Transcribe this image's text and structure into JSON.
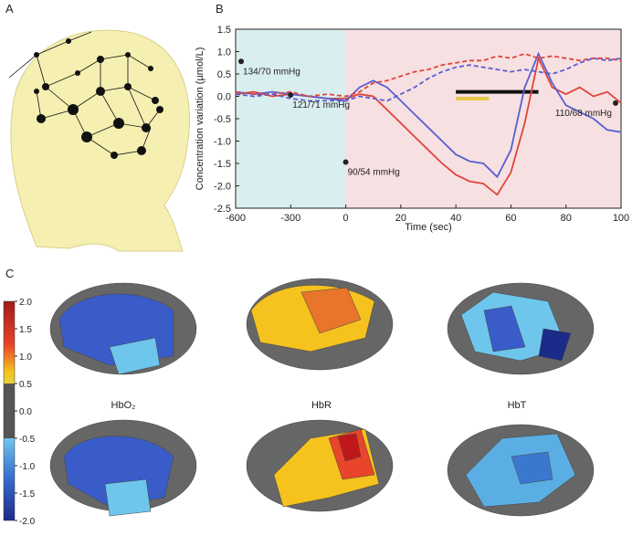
{
  "panel_labels": [
    "A",
    "B",
    "C"
  ],
  "chart_data": {
    "type": "line",
    "ylabel": "Concentration variation (µmol/L)",
    "xlabel": "Time (sec)",
    "x": [
      -600,
      -500,
      -400,
      -300,
      -200,
      -100,
      0,
      5,
      10,
      15,
      20,
      25,
      30,
      35,
      40,
      45,
      50,
      55,
      60,
      65,
      70,
      75,
      80,
      85,
      90,
      95,
      100
    ],
    "series": [
      {
        "color": "#e0453a",
        "dashed": false,
        "values": [
          0.05,
          0.1,
          0.0,
          0.05,
          0.0,
          -0.05,
          -0.05,
          0.05,
          0.0,
          -0.3,
          -0.6,
          -0.9,
          -1.2,
          -1.5,
          -1.75,
          -1.9,
          -1.95,
          -2.2,
          -1.7,
          -0.6,
          0.85,
          0.2,
          0.05,
          0.2,
          0.0,
          0.1,
          -0.15
        ]
      },
      {
        "color": "#5a5ed0",
        "dashed": false,
        "values": [
          0.1,
          0.05,
          0.1,
          0.05,
          0.0,
          -0.05,
          -0.1,
          0.2,
          0.35,
          0.2,
          -0.1,
          -0.4,
          -0.7,
          -1.0,
          -1.3,
          -1.45,
          -1.5,
          -1.8,
          -1.2,
          0.2,
          0.95,
          0.3,
          -0.2,
          -0.35,
          -0.5,
          -0.75,
          -0.8
        ]
      },
      {
        "color": "#e0453a",
        "dashed": true,
        "values": [
          0.1,
          0.05,
          0.05,
          0.1,
          0.0,
          0.05,
          0.0,
          0.1,
          0.3,
          0.35,
          0.45,
          0.55,
          0.6,
          0.7,
          0.75,
          0.8,
          0.8,
          0.9,
          0.85,
          0.95,
          0.85,
          0.9,
          0.85,
          0.8,
          0.85,
          0.85,
          0.8
        ]
      },
      {
        "color": "#5a5ed0",
        "dashed": true,
        "values": [
          0.05,
          0.0,
          0.05,
          -0.05,
          -0.1,
          -0.1,
          -0.1,
          0.0,
          -0.05,
          -0.1,
          0.05,
          0.2,
          0.4,
          0.55,
          0.65,
          0.7,
          0.65,
          0.6,
          0.55,
          0.6,
          0.55,
          0.5,
          0.6,
          0.75,
          0.85,
          0.8,
          0.85
        ]
      }
    ],
    "xlim": [
      -600,
      100
    ],
    "xticks": [
      -600,
      -300,
      0,
      20,
      40,
      60,
      80,
      100
    ],
    "ylim": [
      -2.5,
      1.5
    ],
    "yticks": [
      1.5,
      {
        "value": 1,
        "label": "1.0"
      },
      0.5,
      {
        "value": 0,
        "label": "0.0"
      },
      -0.5,
      {
        "value": -1,
        "label": "-1.0"
      },
      -1.5,
      {
        "value": -2,
        "label": "-2.0"
      },
      -2.5
    ],
    "regions": [
      {
        "x": [
          -600,
          0
        ],
        "color": "#d9eeee"
      },
      {
        "x": [
          0,
          100
        ],
        "color": "#f6e0e2"
      }
    ],
    "spans": [
      {
        "x": [
          40,
          70
        ],
        "y": 0.1,
        "color": "#111111"
      },
      {
        "x": [
          40,
          52
        ],
        "y": -0.05,
        "color": "#e8c64a"
      }
    ],
    "annotations": [
      {
        "x": -570,
        "y": 0.78,
        "label": "134/70 mmHg"
      },
      {
        "x": -300,
        "y": 0.03,
        "label": "121/71 mmHg"
      },
      {
        "x": 0,
        "y": -1.47,
        "label": "90/54 mmHg"
      },
      {
        "x": 98,
        "y": -0.15,
        "label": "110/68 mmHg"
      }
    ]
  },
  "colorbar": {
    "ticks": [
      {
        "value": 2,
        "label": "2.0"
      },
      1.5,
      {
        "value": 1,
        "label": "1.0"
      },
      0.5,
      {
        "value": 0,
        "label": "0.0"
      },
      -0.5,
      {
        "value": -1,
        "label": "-1.0"
      },
      -1.5,
      {
        "value": -2,
        "label": "-2.0"
      }
    ]
  },
  "brain_labels": [
    "HbO₂",
    "HbR",
    "HbT"
  ]
}
